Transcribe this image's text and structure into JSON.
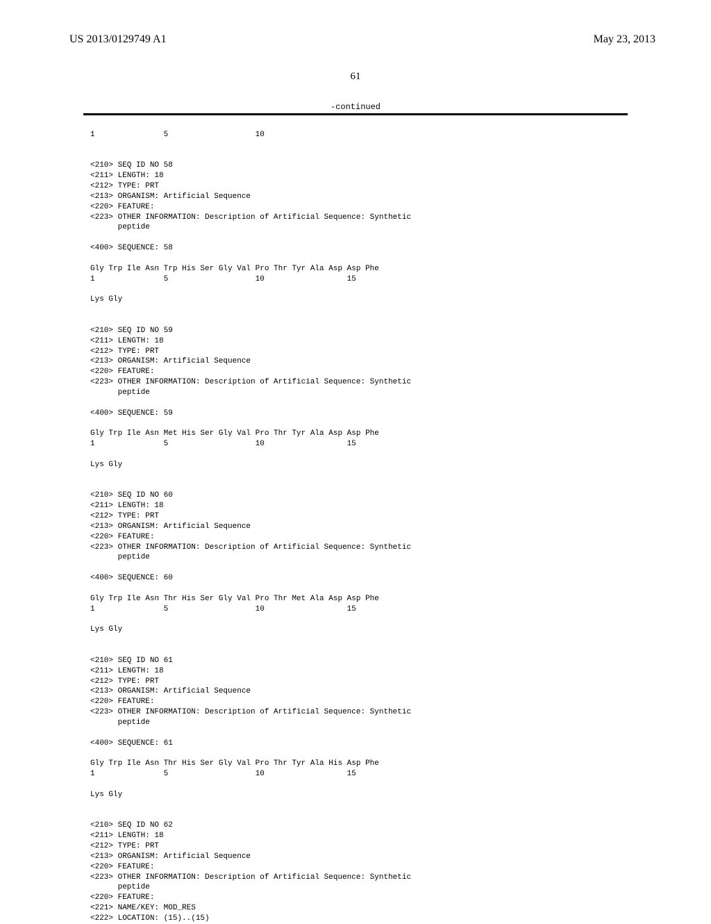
{
  "header": {
    "left": "US 2013/0129749 A1",
    "right": "May 23, 2013"
  },
  "page_number": "61",
  "continued": "-continued",
  "seq": {
    "topline": "1               5                   10",
    "blocks": [
      {
        "h1": "<210> SEQ ID NO 58",
        "h2": "<211> LENGTH: 18",
        "h3": "<212> TYPE: PRT",
        "h4": "<213> ORGANISM: Artificial Sequence",
        "h5": "<220> FEATURE:",
        "h6": "<223> OTHER INFORMATION: Description of Artificial Sequence: Synthetic",
        "h7": "      peptide",
        "q": "<400> SEQUENCE: 58",
        "s1": "Gly Trp Ile Asn Trp His Ser Gly Val Pro Thr Tyr Ala Asp Asp Phe",
        "s2": "1               5                   10                  15",
        "s3": "Lys Gly"
      },
      {
        "h1": "<210> SEQ ID NO 59",
        "h2": "<211> LENGTH: 18",
        "h3": "<212> TYPE: PRT",
        "h4": "<213> ORGANISM: Artificial Sequence",
        "h5": "<220> FEATURE:",
        "h6": "<223> OTHER INFORMATION: Description of Artificial Sequence: Synthetic",
        "h7": "      peptide",
        "q": "<400> SEQUENCE: 59",
        "s1": "Gly Trp Ile Asn Met His Ser Gly Val Pro Thr Tyr Ala Asp Asp Phe",
        "s2": "1               5                   10                  15",
        "s3": "Lys Gly"
      },
      {
        "h1": "<210> SEQ ID NO 60",
        "h2": "<211> LENGTH: 18",
        "h3": "<212> TYPE: PRT",
        "h4": "<213> ORGANISM: Artificial Sequence",
        "h5": "<220> FEATURE:",
        "h6": "<223> OTHER INFORMATION: Description of Artificial Sequence: Synthetic",
        "h7": "      peptide",
        "q": "<400> SEQUENCE: 60",
        "s1": "Gly Trp Ile Asn Thr His Ser Gly Val Pro Thr Met Ala Asp Asp Phe",
        "s2": "1               5                   10                  15",
        "s3": "Lys Gly"
      },
      {
        "h1": "<210> SEQ ID NO 61",
        "h2": "<211> LENGTH: 18",
        "h3": "<212> TYPE: PRT",
        "h4": "<213> ORGANISM: Artificial Sequence",
        "h5": "<220> FEATURE:",
        "h6": "<223> OTHER INFORMATION: Description of Artificial Sequence: Synthetic",
        "h7": "      peptide",
        "q": "<400> SEQUENCE: 61",
        "s1": "Gly Trp Ile Asn Thr His Ser Gly Val Pro Thr Tyr Ala His Asp Phe",
        "s2": "1               5                   10                  15",
        "s3": "Lys Gly"
      }
    ],
    "last": {
      "h1": "<210> SEQ ID NO 62",
      "h2": "<211> LENGTH: 18",
      "h3": "<212> TYPE: PRT",
      "h4": "<213> ORGANISM: Artificial Sequence",
      "h5": "<220> FEATURE:",
      "h6": "<223> OTHER INFORMATION: Description of Artificial Sequence: Synthetic",
      "h7": "      peptide",
      "h8": "<220> FEATURE:",
      "h9": "<221> NAME/KEY: MOD_RES",
      "h10": "<222> LOCATION: (15)..(15)"
    }
  }
}
